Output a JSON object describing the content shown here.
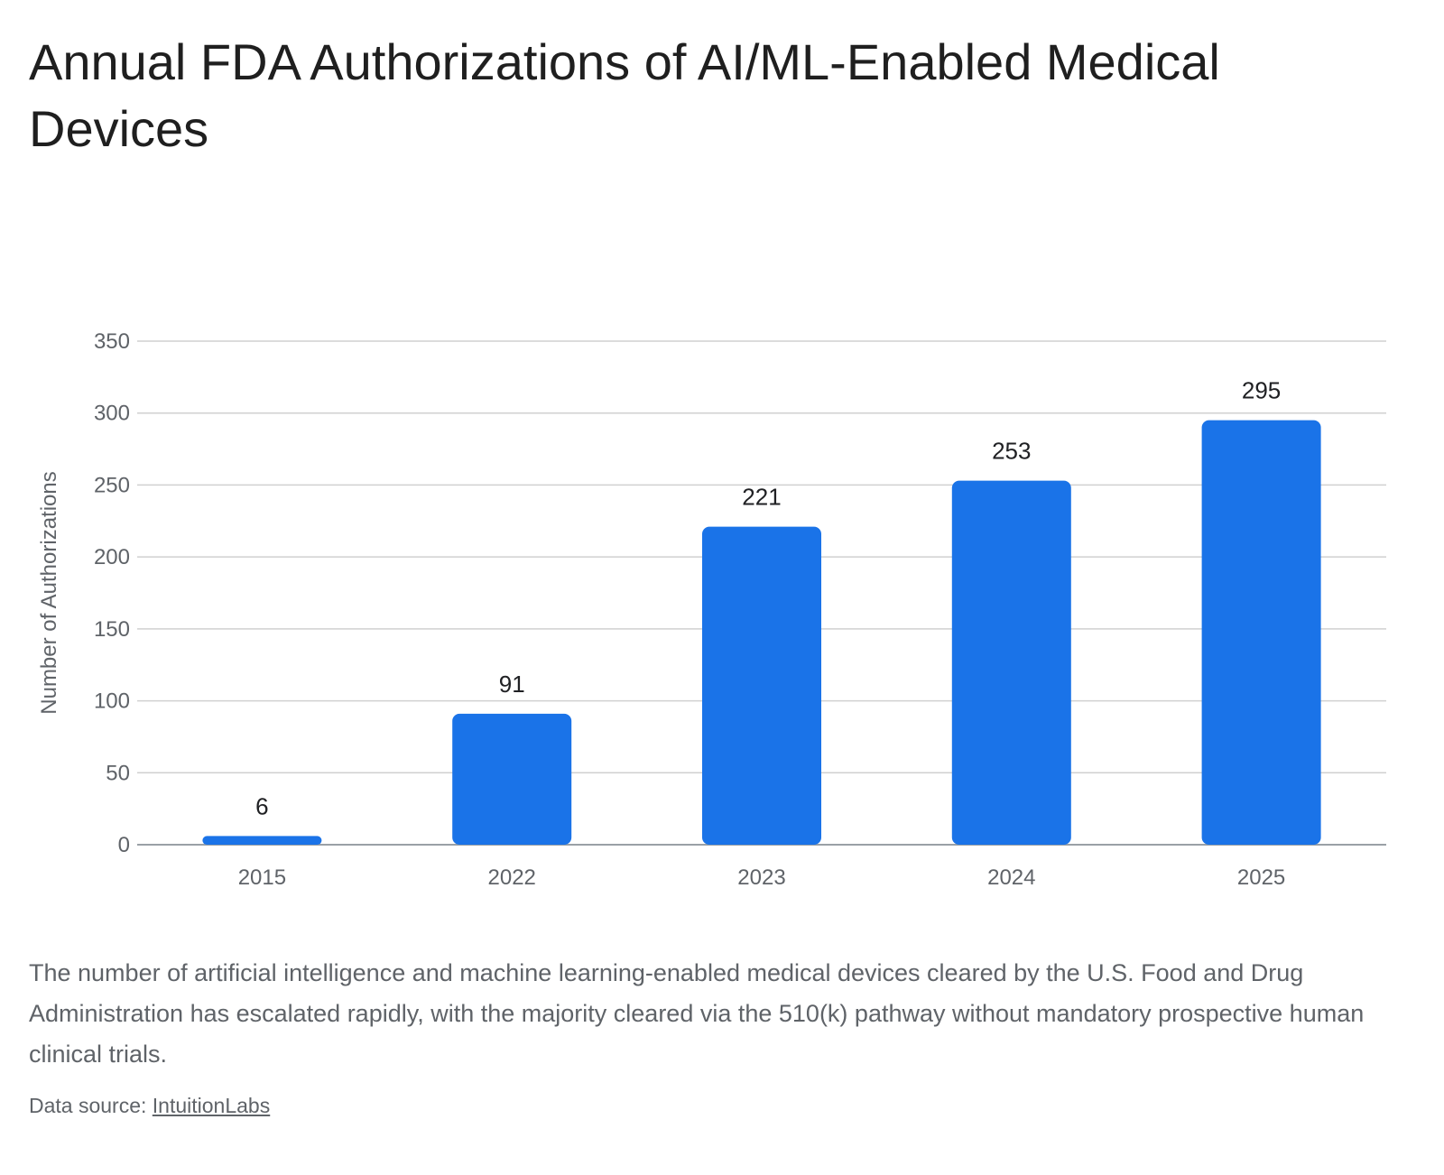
{
  "chart_data": {
    "type": "bar",
    "title": "Annual FDA Authorizations of AI/ML-Enabled Medical Devices",
    "categories": [
      "2015",
      "2022",
      "2023",
      "2024",
      "2025"
    ],
    "values": [
      6,
      91,
      221,
      253,
      295
    ],
    "data_labels": [
      "6",
      "91",
      "221",
      "253",
      "295"
    ],
    "xlabel": "",
    "ylabel": "Number of Authorizations",
    "ylim": [
      0,
      350
    ],
    "yticks": [
      0,
      50,
      100,
      150,
      200,
      250,
      300,
      350
    ],
    "grid": true,
    "legend": "none",
    "bar_color": "#1a73e8"
  },
  "caption": "The number of artificial intelligence and machine learning-enabled medical devices cleared by the U.S. Food and Drug Administration has escalated rapidly, with the majority cleared via the 510(k) pathway without mandatory prospective human clinical trials.",
  "source": {
    "prefix": "Data source: ",
    "link_text": "IntuitionLabs"
  }
}
